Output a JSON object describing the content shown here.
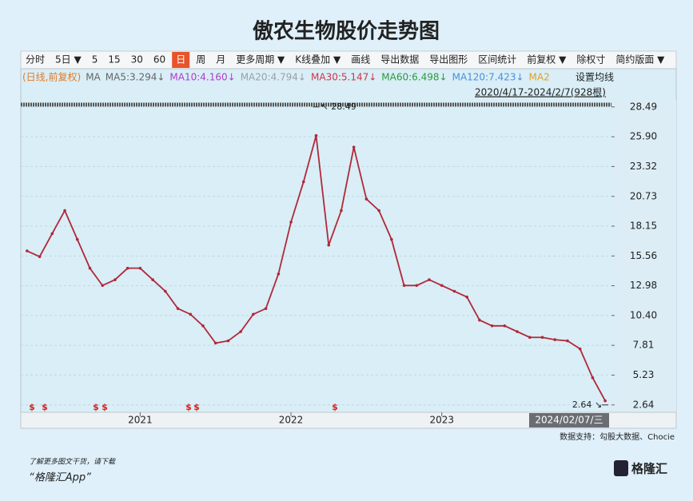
{
  "chart_data": {
    "type": "line",
    "title": "傲农生物股价走势图",
    "toolbar": [
      "分时",
      "5日 ▼",
      "5",
      "15",
      "30",
      "60",
      "日",
      "周",
      "月",
      "更多周期 ▼",
      "K线叠加 ▼",
      "画线",
      "导出数据",
      "导出图形",
      "区间统计",
      "前复权 ▼",
      "除权寸",
      "简约版面 ▼"
    ],
    "ma_row": [
      {
        "text": "(日线,前复权)",
        "color": "#e07b2a"
      },
      {
        "text": "MA",
        "color": "#666666"
      },
      {
        "text": "MA5:3.294↓",
        "color": "#666666"
      },
      {
        "text": "MA10:4.160↓",
        "color": "#b03ccf"
      },
      {
        "text": "MA20:4.794↓",
        "color": "#9aa0a8"
      },
      {
        "text": "MA30:5.147↓",
        "color": "#d0344a"
      },
      {
        "text": "MA60:6.498↓",
        "color": "#2c9a3c"
      },
      {
        "text": "MA120:7.423↓",
        "color": "#4a8fe0"
      },
      {
        "text": "MA2",
        "color": "#e0a020"
      }
    ],
    "settings_label": "设置均线",
    "range_label": "2020/4/17-2024/2/7(928根)",
    "categories": [
      null,
      null,
      null,
      null,
      null,
      null,
      null,
      null,
      null,
      "2021",
      null,
      null,
      null,
      null,
      null,
      null,
      null,
      null,
      null,
      null,
      null,
      "2022",
      null,
      null,
      null,
      null,
      null,
      null,
      null,
      null,
      null,
      null,
      null,
      "2023",
      null,
      null,
      null,
      null,
      null,
      null,
      null,
      null,
      null,
      null,
      null,
      null,
      "2024/02/07/三"
    ],
    "series": [
      {
        "color": "#b0283a",
        "values": [
          16.0,
          15.5,
          17.5,
          19.5,
          17.0,
          14.5,
          13.0,
          13.5,
          14.5,
          14.5,
          13.5,
          12.5,
          11.0,
          10.5,
          9.5,
          8.0,
          8.2,
          9.0,
          10.5,
          11.0,
          14.0,
          18.5,
          22.0,
          26.0,
          16.5,
          19.5,
          25.0,
          20.5,
          19.5,
          17.0,
          13.0,
          13.0,
          13.5,
          13.0,
          12.5,
          12.0,
          10.0,
          9.5,
          9.5,
          9.0,
          8.5,
          8.5,
          8.3,
          8.2,
          7.5,
          5.0,
          3.0
        ]
      }
    ],
    "annotations": [
      {
        "value": 28.49,
        "label": "↖ 28.49"
      },
      {
        "value": 2.64,
        "label": "2.64 ↘"
      }
    ],
    "events": [
      "$",
      "$",
      "$",
      "$",
      "$",
      "$",
      "$"
    ],
    "ylim": [
      2.0,
      29.1
    ],
    "yticks": [
      28.49,
      {
        "value": 25.9,
        "label": "25.90"
      },
      23.32,
      20.73,
      18.15,
      15.56,
      12.98,
      {
        "value": 10.4,
        "label": "10.40"
      },
      7.81,
      5.23,
      2.64
    ],
    "grid": true,
    "source": "数据支持：勾股大数据、Chocie",
    "footer": [
      "了解更多图文干货，请下载",
      "“格隆汇App”"
    ],
    "logo": "格隆汇"
  }
}
